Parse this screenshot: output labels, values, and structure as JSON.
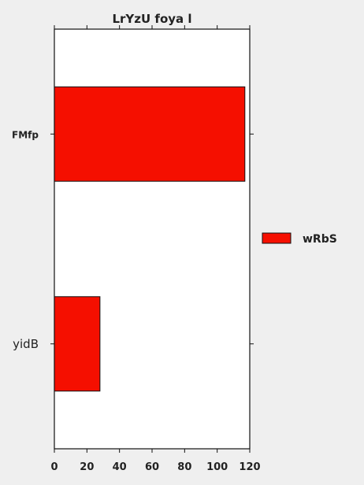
{
  "chart_data": {
    "type": "bar",
    "orientation": "horizontal",
    "title": "LrYzU foya l",
    "categories": [
      "FMfp",
      "yidB"
    ],
    "series": [
      {
        "name": "wRbS",
        "values": [
          117,
          28
        ],
        "color": "#f50f00"
      }
    ],
    "xlim": [
      0,
      120
    ],
    "x_ticks": [
      0,
      20,
      40,
      60,
      80,
      100,
      120
    ],
    "xlabel": "",
    "ylabel": "",
    "grid": false,
    "legend_position": "right"
  }
}
